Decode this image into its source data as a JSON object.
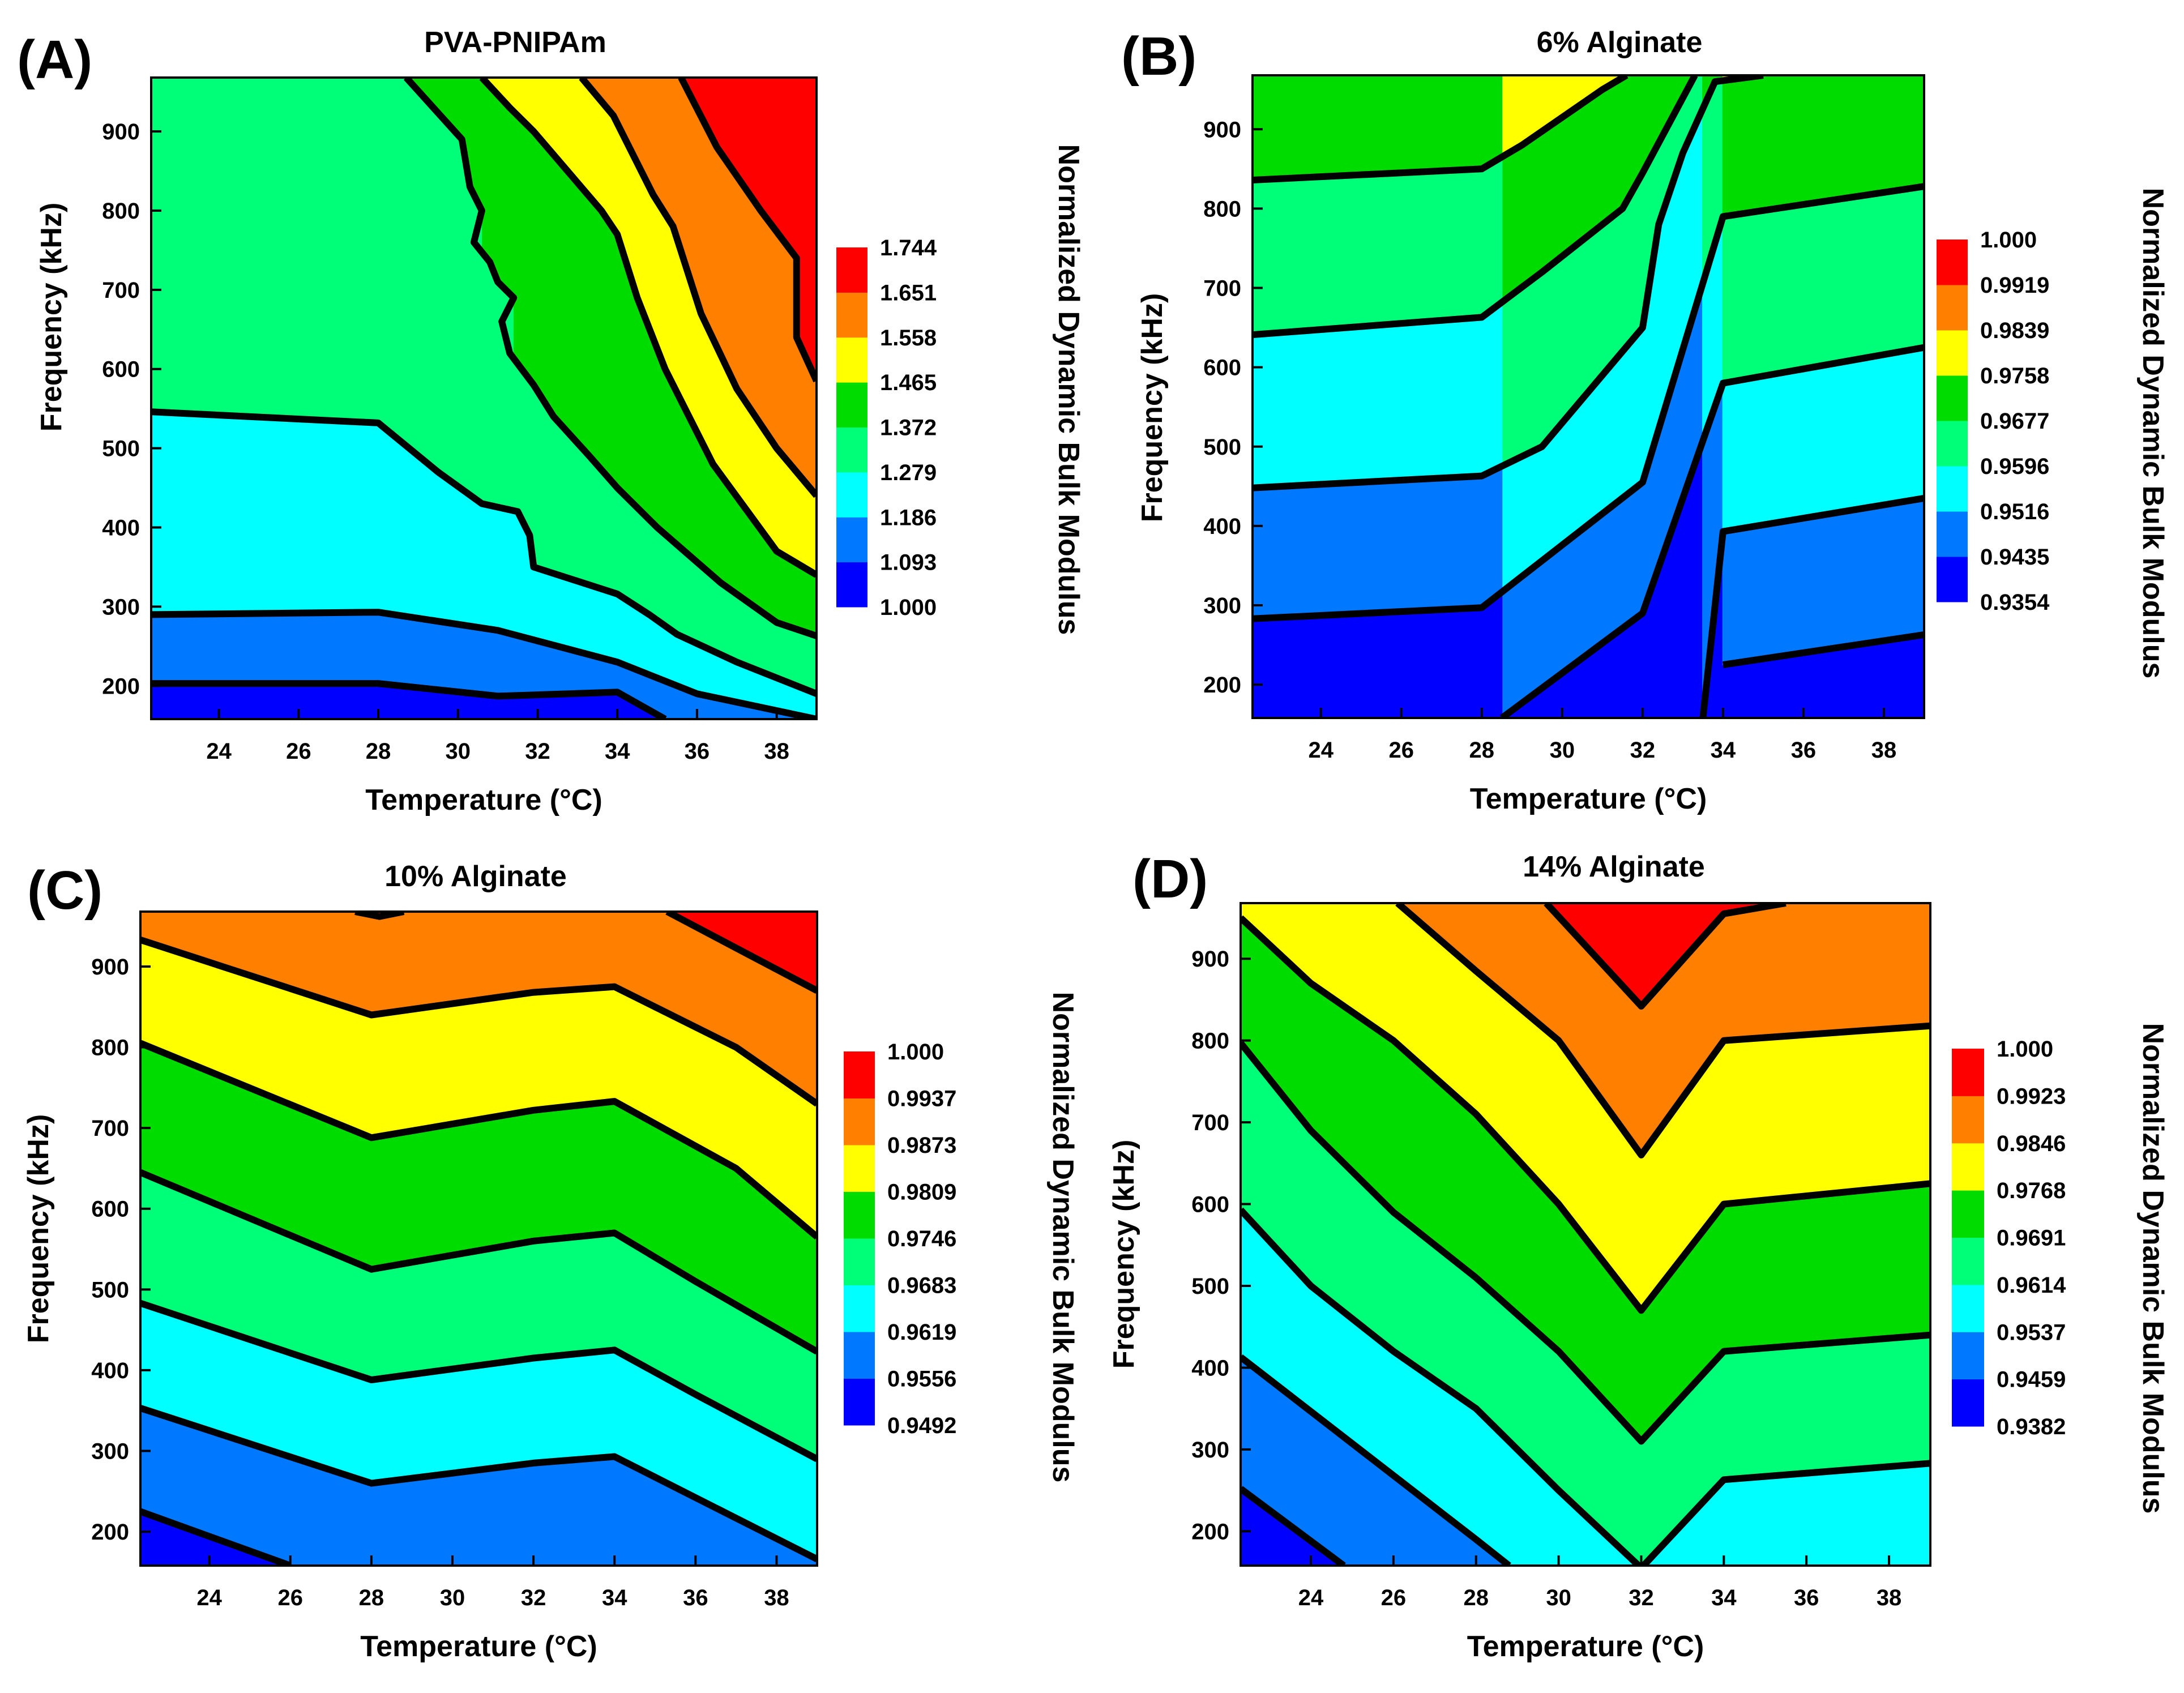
{
  "figure": {
    "description_note": "Four filled contour plots (A-D) of normalized dynamic bulk modulus vs temperature and frequency"
  },
  "chart_data": [
    {
      "id": "A",
      "type": "contour",
      "letter": "(A)",
      "title": "PVA-PNIPAm",
      "xlabel": "Temperature (°C)",
      "ylabel": "Frequency (kHz)",
      "colorbar_label": "Normalized Dynamic Bulk Modulus",
      "xlim": [
        22.3,
        39.0
      ],
      "ylim": [
        158,
        968
      ],
      "xticks": [
        24,
        26,
        28,
        30,
        32,
        34,
        36,
        38
      ],
      "yticks": [
        200,
        300,
        400,
        500,
        600,
        700,
        800,
        900
      ],
      "levels": [
        "1.000",
        "1.093",
        "1.186",
        "1.279",
        "1.372",
        "1.465",
        "1.558",
        "1.651",
        "1.744"
      ],
      "colors": [
        "#0000ff",
        "#0078ff",
        "#00ffff",
        "#00ff78",
        "#00dc00",
        "#ffff00",
        "#ff8000",
        "#ff0000"
      ],
      "contours": [
        [
          [
            22.3,
            203
          ],
          [
            28,
            203
          ],
          [
            31,
            187
          ],
          [
            34,
            192
          ],
          [
            35.2,
            158
          ]
        ],
        [
          [
            22.3,
            290
          ],
          [
            28,
            293
          ],
          [
            31,
            270
          ],
          [
            34,
            230
          ],
          [
            36,
            190
          ],
          [
            39,
            158
          ]
        ],
        [
          [
            22.3,
            546
          ],
          [
            28,
            532
          ],
          [
            29.5,
            470
          ],
          [
            30.6,
            430
          ],
          [
            31.5,
            420
          ],
          [
            31.8,
            390
          ],
          [
            31.9,
            350
          ],
          [
            34,
            316
          ],
          [
            34.8,
            290
          ],
          [
            35.5,
            265
          ],
          [
            37,
            230
          ],
          [
            39,
            190
          ]
        ],
        [
          [
            28.7,
            968
          ],
          [
            30.1,
            890
          ],
          [
            30.3,
            830
          ],
          [
            30.6,
            800
          ],
          [
            30.4,
            760
          ],
          [
            30.8,
            735
          ],
          [
            31,
            710
          ],
          [
            31.4,
            690
          ],
          [
            31.1,
            660
          ],
          [
            31.3,
            620
          ],
          [
            31.9,
            580
          ],
          [
            32.4,
            540
          ],
          [
            33.3,
            490
          ],
          [
            34,
            450
          ],
          [
            35,
            400
          ],
          [
            36.6,
            330
          ],
          [
            38,
            280
          ],
          [
            39,
            263
          ]
        ],
        [
          [
            30.6,
            968
          ],
          [
            31.3,
            930
          ],
          [
            31.9,
            900
          ],
          [
            33.6,
            800
          ],
          [
            34,
            770
          ],
          [
            34.5,
            690
          ],
          [
            35.2,
            600
          ],
          [
            36.4,
            480
          ],
          [
            38,
            370
          ],
          [
            39,
            340
          ]
        ],
        [
          [
            33.1,
            968
          ],
          [
            33.9,
            920
          ],
          [
            34.9,
            820
          ],
          [
            35.4,
            780
          ],
          [
            36.1,
            670
          ],
          [
            37,
            575
          ],
          [
            38,
            500
          ],
          [
            39,
            440
          ]
        ],
        [
          [
            35.6,
            968
          ],
          [
            36.5,
            880
          ],
          [
            37.6,
            800
          ],
          [
            38.5,
            740
          ],
          [
            38.5,
            640
          ],
          [
            39,
            585
          ]
        ]
      ]
    },
    {
      "id": "B",
      "type": "contour",
      "letter": "(B)",
      "title": "6% Alginate",
      "xlabel": "Temperature (°C)",
      "ylabel": "Frequency (kHz)",
      "colorbar_label": "Normalized Dynamic Bulk Modulus",
      "xlim": [
        22.3,
        39.0
      ],
      "ylim": [
        158,
        968
      ],
      "xticks": [
        24,
        26,
        28,
        30,
        32,
        34,
        36,
        38
      ],
      "yticks": [
        200,
        300,
        400,
        500,
        600,
        700,
        800,
        900
      ],
      "levels": [
        "0.9354",
        "0.9435",
        "0.9516",
        "0.9596",
        "0.9677",
        "0.9758",
        "0.9839",
        "0.9919",
        "1.000"
      ],
      "colors": [
        "#0000ff",
        "#0078ff",
        "#00ffff",
        "#00ff78",
        "#00dc00",
        "#ffff00",
        "#ff8000",
        "#ff0000"
      ],
      "contours": [
        [
          [
            34,
            225
          ],
          [
            39,
            263
          ]
        ],
        [
          [
            33.5,
            158
          ],
          [
            34,
            393
          ],
          [
            39,
            435
          ]
        ],
        [
          [
            28.5,
            158
          ],
          [
            32,
            290
          ],
          [
            34,
            580
          ],
          [
            39,
            625
          ]
        ],
        [
          [
            22.3,
            283
          ],
          [
            28,
            297
          ],
          [
            32,
            455
          ],
          [
            34,
            790
          ],
          [
            39,
            828
          ]
        ],
        [
          [
            22.3,
            448
          ],
          [
            28,
            463
          ],
          [
            29.5,
            500
          ],
          [
            32,
            650
          ],
          [
            32.4,
            780
          ],
          [
            33,
            870
          ],
          [
            33.8,
            960
          ],
          [
            35,
            968
          ]
        ],
        [
          [
            22.3,
            641
          ],
          [
            28,
            663
          ],
          [
            29.5,
            720
          ],
          [
            31.5,
            800
          ],
          [
            32,
            845
          ],
          [
            33.3,
            968
          ]
        ],
        [
          [
            22.3,
            836
          ],
          [
            28,
            850
          ],
          [
            29,
            880
          ],
          [
            31,
            950
          ],
          [
            31.6,
            968
          ]
        ]
      ]
    },
    {
      "id": "C",
      "type": "contour",
      "letter": "(C)",
      "title": "10% Alginate",
      "xlabel": "Temperature (°C)",
      "ylabel": "Frequency (kHz)",
      "colorbar_label": "Normalized Dynamic Bulk Modulus",
      "xlim": [
        22.3,
        39.0
      ],
      "ylim": [
        158,
        968
      ],
      "xticks": [
        24,
        26,
        28,
        30,
        32,
        34,
        36,
        38
      ],
      "yticks": [
        200,
        300,
        400,
        500,
        600,
        700,
        800,
        900
      ],
      "levels": [
        "0.9492",
        "0.9556",
        "0.9619",
        "0.9683",
        "0.9746",
        "0.9809",
        "0.9873",
        "0.9937",
        "1.000"
      ],
      "colors": [
        "#0000ff",
        "#0078ff",
        "#00ffff",
        "#00ff78",
        "#00dc00",
        "#ffff00",
        "#ff8000",
        "#ff0000"
      ],
      "contours": [
        [
          [
            22.3,
            225
          ],
          [
            26,
            158
          ]
        ],
        [
          [
            22.3,
            353
          ],
          [
            28,
            260
          ],
          [
            32,
            285
          ],
          [
            34,
            293
          ],
          [
            39,
            166
          ]
        ],
        [
          [
            22.3,
            483
          ],
          [
            28,
            388
          ],
          [
            32,
            415
          ],
          [
            34,
            425
          ],
          [
            36,
            370
          ],
          [
            39,
            290
          ]
        ],
        [
          [
            22.3,
            645
          ],
          [
            28,
            525
          ],
          [
            32,
            560
          ],
          [
            34,
            570
          ],
          [
            36,
            510
          ],
          [
            39,
            423
          ]
        ],
        [
          [
            22.3,
            805
          ],
          [
            28,
            688
          ],
          [
            32,
            722
          ],
          [
            34,
            733
          ],
          [
            37,
            650
          ],
          [
            39,
            565
          ]
        ],
        [
          [
            22.3,
            933
          ],
          [
            28,
            840
          ],
          [
            32,
            868
          ],
          [
            34,
            875
          ],
          [
            37,
            800
          ],
          [
            39,
            730
          ]
        ],
        [
          [
            27.6,
            968
          ],
          [
            28.2,
            962
          ],
          [
            28.8,
            968
          ]
        ],
        [
          [
            35.3,
            968
          ],
          [
            39,
            870
          ]
        ]
      ]
    },
    {
      "id": "D",
      "type": "contour",
      "letter": "(D)",
      "title": "14% Alginate",
      "xlabel": "Temperature (°C)",
      "ylabel": "Frequency (kHz)",
      "colorbar_label": "Normalized Dynamic Bulk Modulus",
      "xlim": [
        22.3,
        39.0
      ],
      "ylim": [
        158,
        968
      ],
      "xticks": [
        24,
        26,
        28,
        30,
        32,
        34,
        36,
        38
      ],
      "yticks": [
        200,
        300,
        400,
        500,
        600,
        700,
        800,
        900
      ],
      "levels": [
        "0.9382",
        "0.9459",
        "0.9537",
        "0.9614",
        "0.9691",
        "0.9768",
        "0.9846",
        "0.9923",
        "1.000"
      ],
      "colors": [
        "#0000ff",
        "#0078ff",
        "#00ffff",
        "#00ff78",
        "#00dc00",
        "#ffff00",
        "#ff8000",
        "#ff0000"
      ],
      "contours": [
        [
          [
            22.3,
            252
          ],
          [
            24.8,
            158
          ]
        ],
        [
          [
            22.3,
            413
          ],
          [
            28,
            190
          ],
          [
            28.8,
            158
          ]
        ],
        [
          [
            22.3,
            593
          ],
          [
            24,
            500
          ],
          [
            26,
            420
          ],
          [
            28,
            350
          ],
          [
            30,
            250
          ],
          [
            32,
            155
          ],
          [
            34,
            263
          ],
          [
            39,
            283
          ]
        ],
        [
          [
            22.3,
            797
          ],
          [
            24,
            690
          ],
          [
            26,
            590
          ],
          [
            28,
            510
          ],
          [
            30,
            420
          ],
          [
            32,
            310
          ],
          [
            34,
            420
          ],
          [
            39,
            440
          ]
        ],
        [
          [
            22.3,
            950
          ],
          [
            24,
            870
          ],
          [
            26,
            800
          ],
          [
            28,
            710
          ],
          [
            30,
            600
          ],
          [
            32,
            470
          ],
          [
            34,
            600
          ],
          [
            39,
            625
          ]
        ],
        [
          [
            26.1,
            968
          ],
          [
            28,
            885
          ],
          [
            30,
            800
          ],
          [
            32,
            660
          ],
          [
            34,
            800
          ],
          [
            39,
            818
          ]
        ],
        [
          [
            29.7,
            968
          ],
          [
            32,
            842
          ],
          [
            34,
            955
          ],
          [
            35.5,
            968
          ]
        ]
      ]
    }
  ]
}
